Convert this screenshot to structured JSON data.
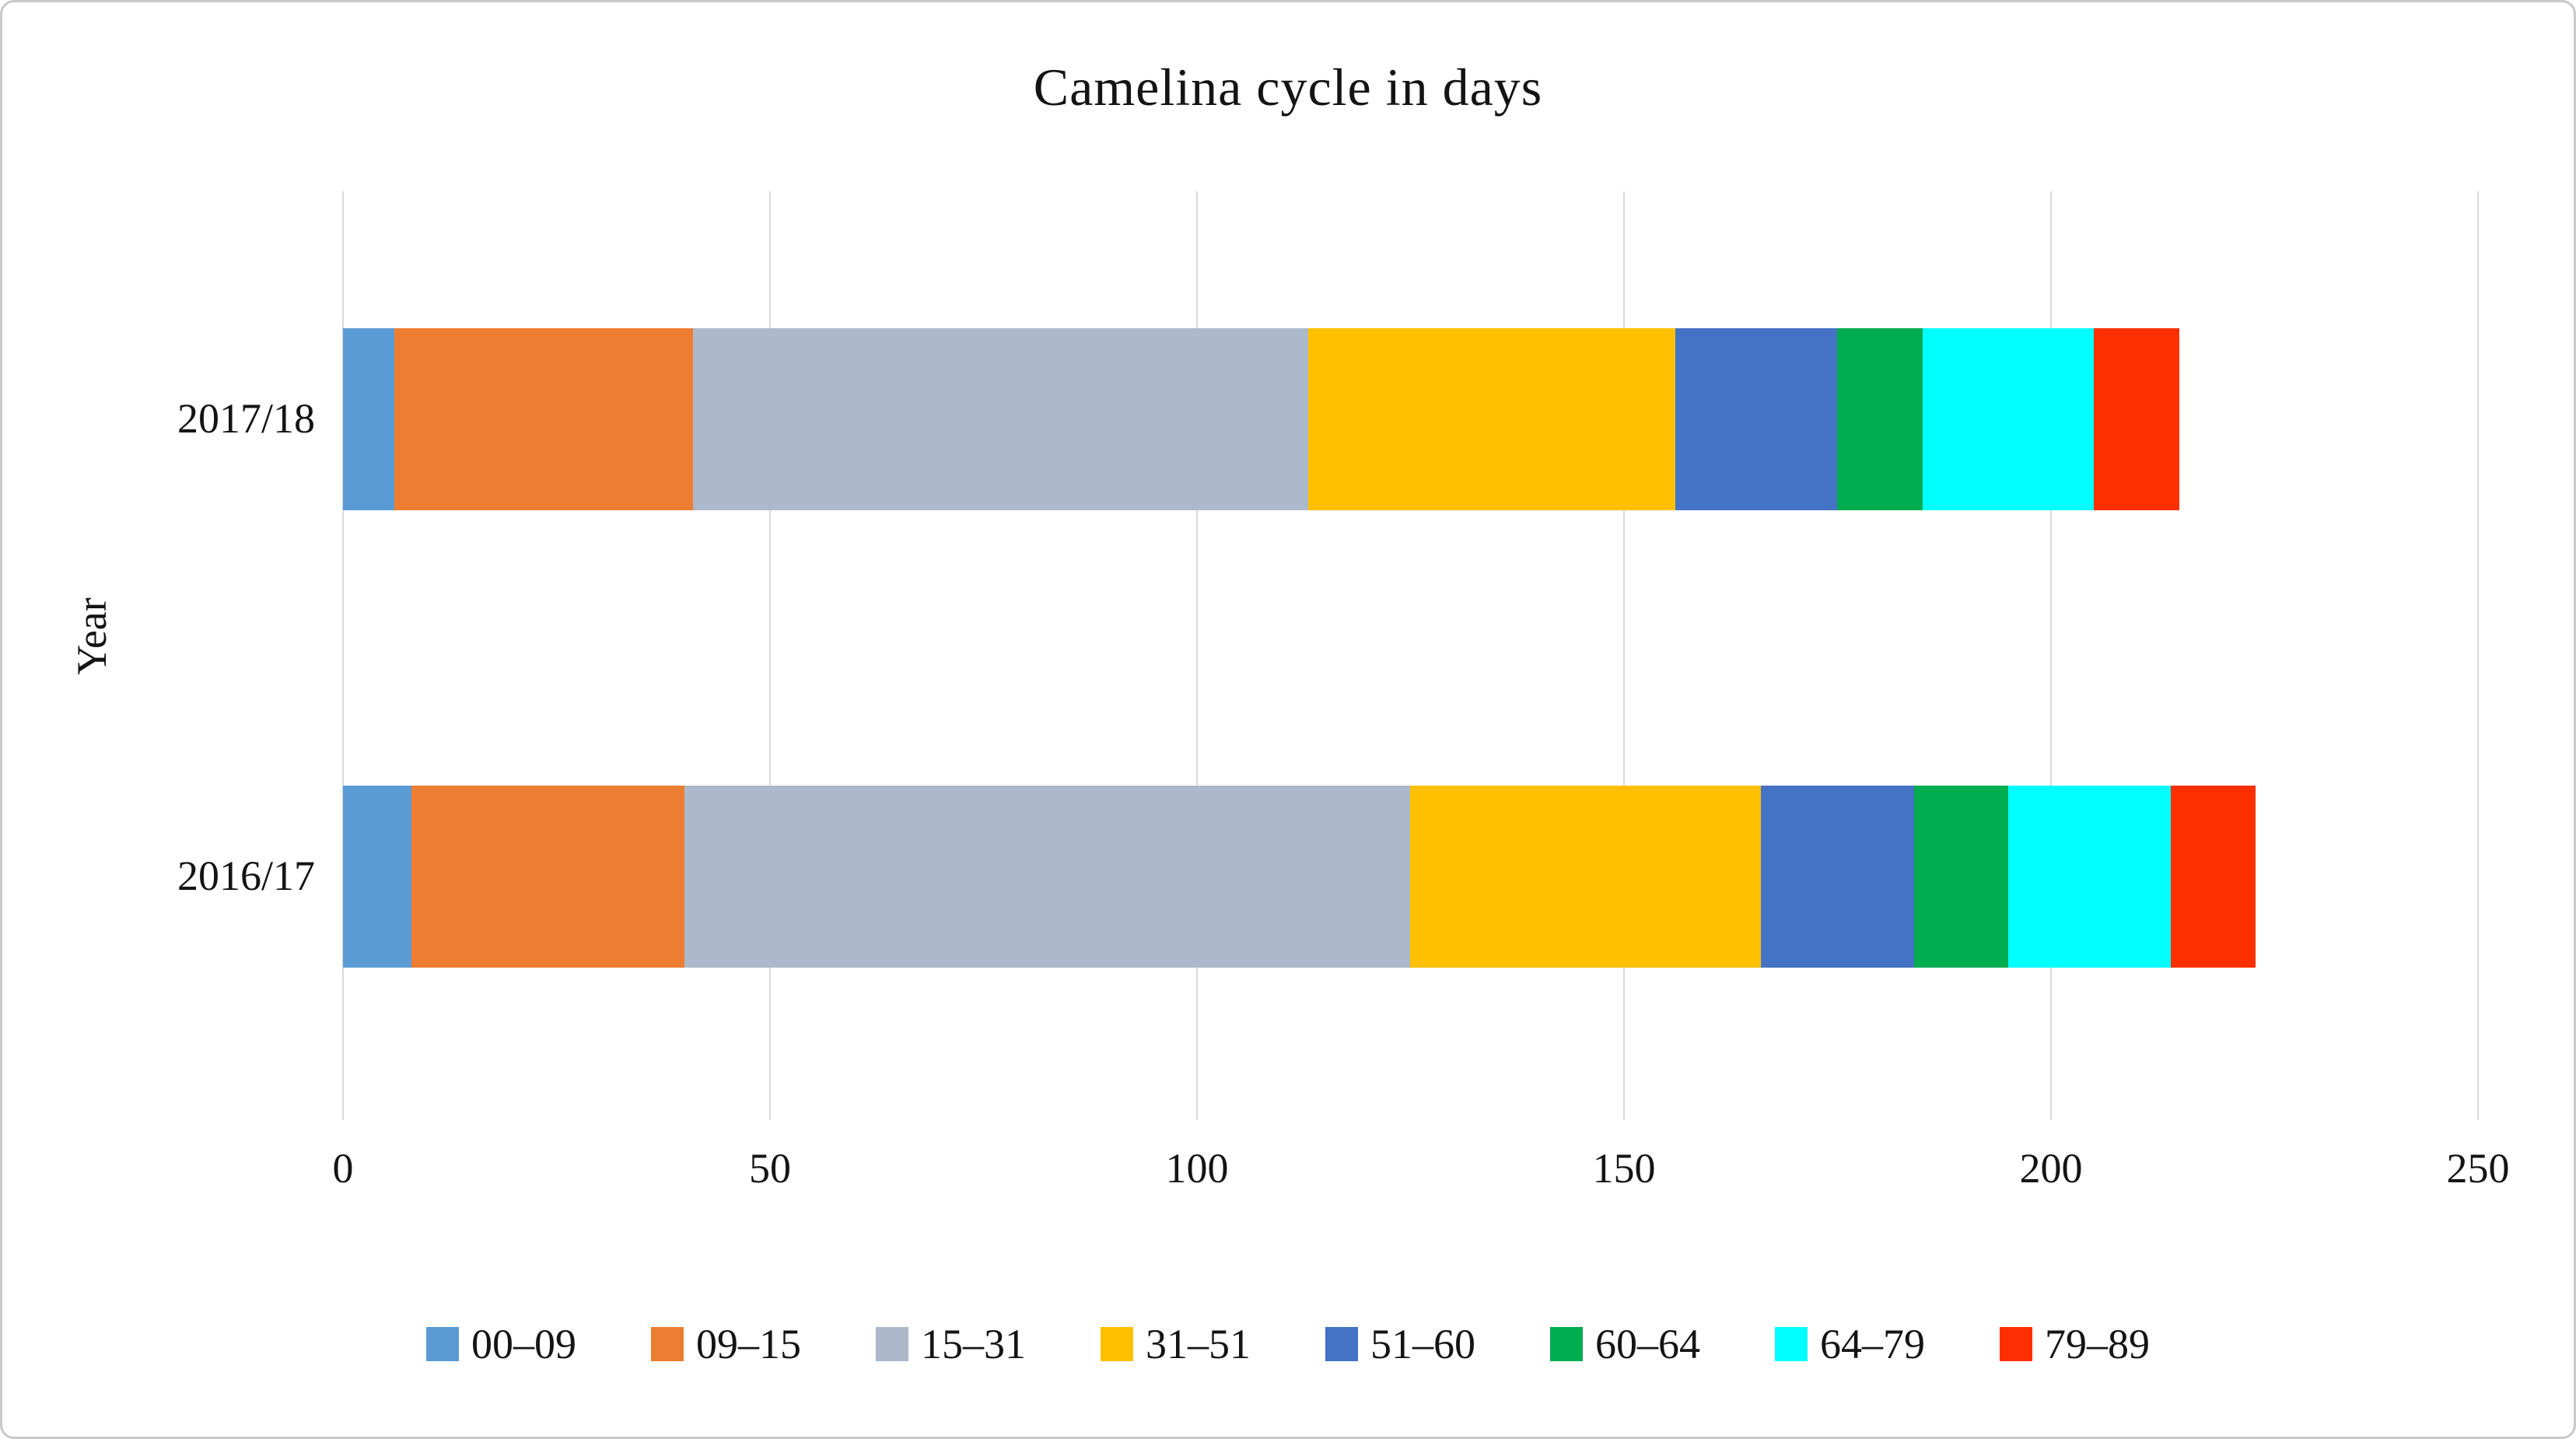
{
  "chart_data": {
    "type": "bar",
    "orientation": "horizontal",
    "stacked": true,
    "title": "Camelina cycle in days",
    "xlabel": "",
    "ylabel": "Year",
    "categories": [
      "2017/18",
      "2016/17"
    ],
    "series": [
      {
        "name": "00–09",
        "color": "#5B9BD5",
        "values": [
          6,
          8
        ]
      },
      {
        "name": "09–15",
        "color": "#ED7D31",
        "values": [
          35,
          32
        ]
      },
      {
        "name": "15–31",
        "color": "#ACB9CA",
        "values": [
          72,
          85
        ]
      },
      {
        "name": "31–51",
        "color": "#FFC000",
        "values": [
          43,
          41
        ]
      },
      {
        "name": "51–60",
        "color": "#4472C4",
        "values": [
          19,
          18
        ]
      },
      {
        "name": "60–64",
        "color": "#00AC50",
        "values": [
          10,
          11
        ]
      },
      {
        "name": "64–79",
        "color": "#00FFFF",
        "values": [
          20,
          19
        ]
      },
      {
        "name": "79–89",
        "color": "#FD2F00",
        "values": [
          10,
          10
        ]
      }
    ],
    "xlim": [
      0,
      250
    ],
    "x_ticks": [
      0,
      50,
      100,
      150,
      200,
      250
    ],
    "grid": true,
    "legend_position": "bottom",
    "gridline_color": "#D9D9D9"
  }
}
